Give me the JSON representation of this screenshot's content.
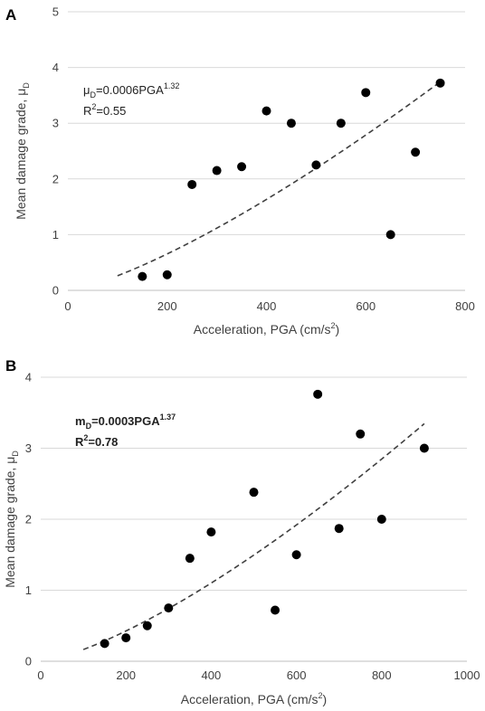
{
  "chart_data": [
    {
      "panel": "A",
      "type": "scatter",
      "xlabel": "Acceleration, PGA (cm/s",
      "xlabel_sup": "2",
      "xlabel_end": ")",
      "ylabel": "Mean damage grade, μ",
      "ylabel_sub": "D",
      "xlim": [
        0,
        800
      ],
      "ylim": [
        0,
        5
      ],
      "xticks": [
        0,
        200,
        400,
        600,
        800
      ],
      "yticks": [
        0,
        1,
        2,
        3,
        4,
        5
      ],
      "grid": "horizontal",
      "equation": {
        "lhs": "μ",
        "lhs_sub": "D",
        "rhs": "=0.0006PGA",
        "exp": "1.32"
      },
      "r2": {
        "label": "R",
        "sup": "2",
        "value": "=0.55"
      },
      "series": [
        {
          "x": [
            150,
            200,
            250,
            300,
            350,
            400,
            450,
            500,
            550,
            600,
            650,
            700,
            750
          ],
          "y": [
            0.25,
            0.28,
            1.9,
            2.15,
            2.22,
            3.22,
            3.0,
            2.25,
            3.0,
            3.55,
            1.0,
            2.48,
            3.72
          ]
        }
      ],
      "trendline": {
        "a": 0.0006,
        "b": 1.32,
        "x_range": [
          100,
          750
        ],
        "style": "dashed"
      }
    },
    {
      "panel": "B",
      "type": "scatter",
      "xlabel": "Acceleration, PGA (cm/s",
      "xlabel_sup": "2",
      "xlabel_end": ")",
      "ylabel": "Mean damage grade, μ",
      "ylabel_sub": "D",
      "xlim": [
        0,
        1000
      ],
      "ylim": [
        0,
        4
      ],
      "xticks": [
        0,
        200,
        400,
        600,
        800,
        1000
      ],
      "yticks": [
        0,
        1,
        2,
        3,
        4
      ],
      "grid": "horizontal",
      "equation": {
        "lhs": "m",
        "lhs_sub": "D",
        "rhs": "=0.0003PGA",
        "exp": "1.37"
      },
      "r2": {
        "label": "R",
        "sup": "2",
        "value": "=0.78"
      },
      "series": [
        {
          "x": [
            150,
            200,
            250,
            300,
            350,
            400,
            500,
            550,
            600,
            650,
            700,
            750,
            800,
            900
          ],
          "y": [
            0.25,
            0.33,
            0.5,
            0.75,
            1.45,
            1.82,
            2.38,
            0.72,
            1.5,
            3.76,
            1.87,
            3.2,
            2.0,
            3.0
          ]
        }
      ],
      "trendline": {
        "a": 0.0003,
        "b": 1.37,
        "x_range": [
          100,
          900
        ],
        "style": "dashed"
      }
    }
  ]
}
